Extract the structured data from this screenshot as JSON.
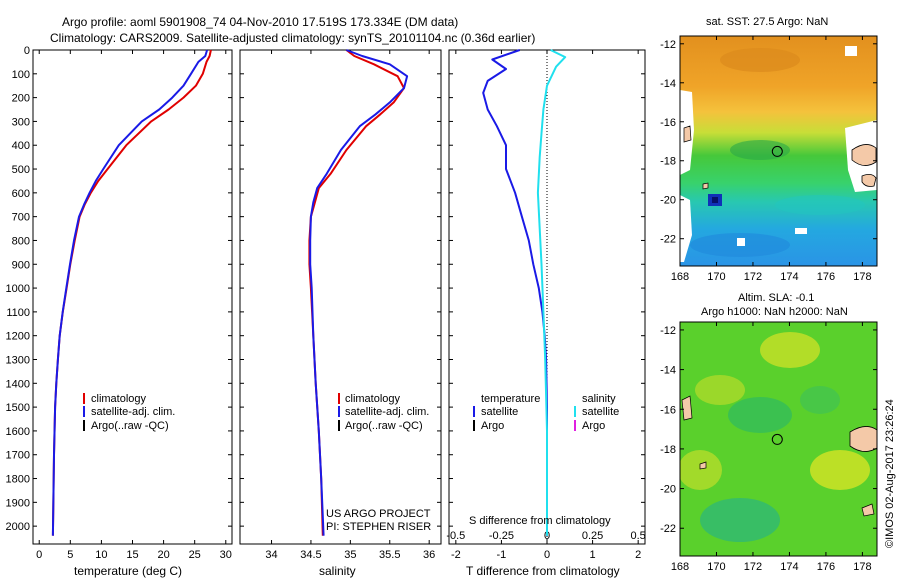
{
  "header": {
    "title_line1": "Argo profile: aoml 5901908_74 04-Nov-2010 17.519S 173.334E (DM data)",
    "title_line2": "Climatology: CARS2009. Satellite-adjusted climatology: synTS_20101104.nc (0.36d earlier)"
  },
  "colors": {
    "climatology": "#e00000",
    "satellite": "#1a1ae6",
    "argo": "#000000",
    "sal_satellite": "#20e0ee",
    "sal_argo": "#e020e0"
  },
  "chart_data": [
    {
      "type": "line",
      "id": "temperature",
      "xlabel": "temperature (deg C)",
      "ylabel": "",
      "xlim": [
        -1,
        31
      ],
      "ylim": [
        0,
        2075
      ],
      "y_reversed": true,
      "xticks": [
        0,
        5,
        10,
        15,
        20,
        25,
        30
      ],
      "yticks": [
        0,
        100,
        200,
        300,
        400,
        500,
        600,
        700,
        800,
        900,
        1000,
        1100,
        1200,
        1300,
        1400,
        1500,
        1600,
        1700,
        1800,
        1900,
        2000
      ],
      "legend": [
        "climatology",
        "satellite-adj. clim.",
        "Argo(..raw -QC)"
      ],
      "series": [
        {
          "name": "climatology",
          "color": "#e00000",
          "x": [
            27.6,
            27.4,
            26.9,
            26.3,
            25.2,
            23.2,
            20.8,
            18.0,
            14.0,
            11.0,
            9.5,
            8.3,
            7.3,
            6.5,
            5.7,
            5.0,
            4.4,
            3.8,
            3.3,
            3.0,
            2.75,
            2.55,
            2.38,
            2.2
          ],
          "y": [
            0,
            25,
            50,
            100,
            150,
            200,
            250,
            300,
            400,
            500,
            550,
            600,
            650,
            700,
            800,
            900,
            1000,
            1100,
            1200,
            1300,
            1400,
            1500,
            1700,
            2040
          ]
        },
        {
          "name": "satellite-adj. clim.",
          "color": "#1a1ae6",
          "x": [
            27.0,
            26.7,
            25.6,
            24.4,
            23.2,
            21.4,
            19.3,
            16.5,
            12.8,
            10.3,
            9.1,
            8.1,
            7.2,
            6.4,
            5.6,
            4.95,
            4.35,
            3.78,
            3.3,
            3.0,
            2.75,
            2.55,
            2.38,
            2.2
          ],
          "y": [
            0,
            25,
            50,
            100,
            150,
            200,
            250,
            300,
            400,
            500,
            550,
            600,
            650,
            700,
            800,
            900,
            1000,
            1100,
            1200,
            1300,
            1400,
            1500,
            1700,
            2040
          ]
        }
      ],
      "annotations": []
    },
    {
      "type": "line",
      "id": "salinity",
      "xlabel": "salinity",
      "ylabel": "",
      "xlim": [
        33.6,
        36.15
      ],
      "ylim": [
        0,
        2075
      ],
      "y_reversed": true,
      "xticks": [
        34,
        34.5,
        35,
        35.5,
        36
      ],
      "xtick_labels": [
        "34",
        "34.5",
        "35",
        "35.5",
        "36"
      ],
      "legend": [
        "climatology",
        "satellite-adj. clim.",
        "Argo(..raw -QC)"
      ],
      "series": [
        {
          "name": "climatology",
          "color": "#e00000",
          "x": [
            34.95,
            35.05,
            35.3,
            35.6,
            35.68,
            35.55,
            35.38,
            35.2,
            34.95,
            34.75,
            34.6,
            34.55,
            34.5,
            34.48,
            34.48,
            34.5,
            34.53,
            34.56,
            34.6,
            34.63,
            34.65
          ],
          "y": [
            0,
            25,
            60,
            110,
            160,
            220,
            270,
            320,
            420,
            520,
            580,
            640,
            700,
            800,
            900,
            1000,
            1200,
            1400,
            1600,
            1800,
            2040
          ]
        },
        {
          "name": "satellite-adj. clim.",
          "color": "#1a1ae6",
          "x": [
            34.95,
            35.15,
            35.5,
            35.72,
            35.68,
            35.5,
            35.32,
            35.12,
            34.88,
            34.7,
            34.58,
            34.53,
            34.5,
            34.49,
            34.49,
            34.51,
            34.53,
            34.56,
            34.6,
            34.63,
            34.66
          ],
          "y": [
            0,
            25,
            60,
            110,
            160,
            220,
            270,
            320,
            420,
            520,
            580,
            640,
            700,
            800,
            900,
            1000,
            1200,
            1400,
            1600,
            1800,
            2040
          ]
        }
      ],
      "annotations": [
        "US ARGO PROJECT",
        "PI: STEPHEN RISER"
      ]
    },
    {
      "type": "line",
      "id": "difference",
      "xlabel": "T difference from climatology",
      "x2label": "S difference from climatology",
      "xlim": [
        -2.15,
        2.15
      ],
      "ylim": [
        0,
        2075
      ],
      "y_reversed": true,
      "xticks": [
        -2,
        -1,
        0,
        1,
        2
      ],
      "x2ticks": [
        -0.5,
        -0.25,
        0,
        0.25,
        0.5
      ],
      "x2lim": [
        -0.5375,
        0.5375
      ],
      "legend_left_title": "temperature",
      "legend_left": [
        "satellite",
        "Argo"
      ],
      "legend_right_title": "salinity",
      "legend_right": [
        "satellite",
        "Argo"
      ],
      "series": [
        {
          "name": "temperature satellite",
          "color": "#1a1ae6",
          "axis": "T",
          "x": [
            -0.6,
            -1.2,
            -0.9,
            -1.3,
            -1.4,
            -1.3,
            -1.1,
            -0.9,
            -0.9,
            -0.7,
            -0.55,
            -0.4,
            -0.3,
            -0.18,
            -0.1,
            -0.05,
            -0.02,
            0,
            0
          ],
          "y": [
            0,
            40,
            80,
            130,
            180,
            250,
            320,
            400,
            500,
            600,
            700,
            800,
            900,
            1000,
            1100,
            1200,
            1300,
            1500,
            2040
          ]
        },
        {
          "name": "salinity satellite",
          "color": "#20e0ee",
          "axis": "S",
          "x": [
            0.02,
            0.1,
            0.05,
            0.0,
            -0.02,
            -0.03,
            -0.04,
            -0.05,
            -0.04,
            -0.03,
            -0.02,
            -0.01,
            0,
            0
          ],
          "y": [
            0,
            30,
            70,
            150,
            250,
            350,
            450,
            600,
            750,
            900,
            1100,
            1300,
            1600,
            2040
          ]
        }
      ]
    },
    {
      "type": "heatmap",
      "id": "sst_map",
      "title": "sat. SST: 27.5 Argo: NaN",
      "xticks": [
        168,
        170,
        172,
        174,
        176,
        178
      ],
      "yticks": [
        -12,
        -14,
        -16,
        -18,
        -20,
        -22
      ],
      "xlim": [
        168,
        178.8
      ],
      "ylim": [
        -23.4,
        -11.6
      ],
      "float_position": [
        173.334,
        -17.519
      ]
    },
    {
      "type": "heatmap",
      "id": "sla_map",
      "title_line1": "Altim. SLA: -0.1",
      "title_line2": "Argo h1000: NaN h2000: NaN",
      "xticks": [
        168,
        170,
        172,
        174,
        176,
        178
      ],
      "yticks": [
        -12,
        -14,
        -16,
        -18,
        -20,
        -22
      ],
      "xlim": [
        168,
        178.8
      ],
      "ylim": [
        -23.4,
        -11.6
      ],
      "float_position": [
        173.334,
        -17.519
      ]
    }
  ],
  "footer": {
    "credit": "©IMOS 02-Aug-2017 23:26:24"
  }
}
